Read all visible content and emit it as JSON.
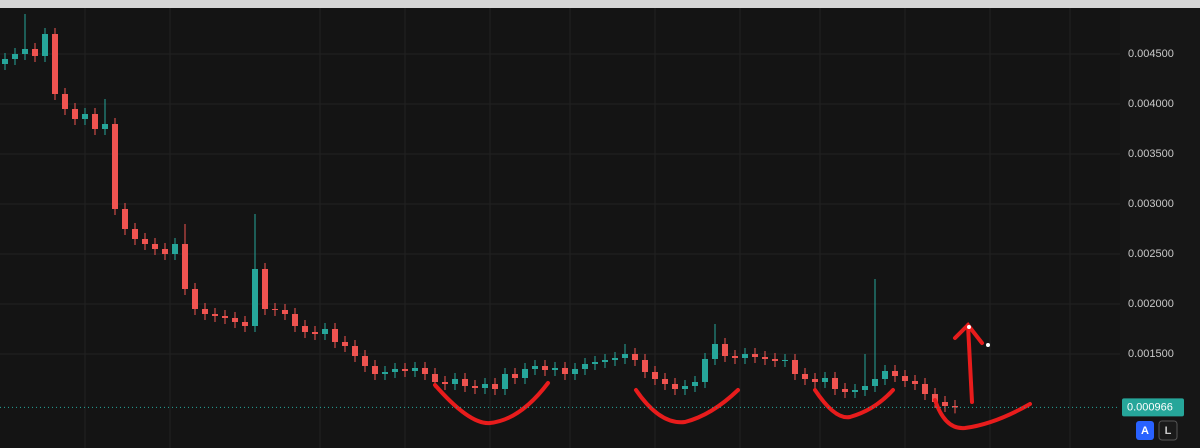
{
  "chart_data": {
    "type": "candlestick",
    "ylim": [
      0.00064,
      0.00496
    ],
    "yticks": [
      {
        "value": 0.0015,
        "label": "0.001500"
      },
      {
        "value": 0.002,
        "label": "0.002000"
      },
      {
        "value": 0.0025,
        "label": "0.002500"
      },
      {
        "value": 0.003,
        "label": "0.003000"
      },
      {
        "value": 0.0035,
        "label": "0.003500"
      },
      {
        "value": 0.004,
        "label": "0.004000"
      },
      {
        "value": 0.0045,
        "label": "0.004500"
      }
    ],
    "grid": true,
    "up_color": "#26a69a",
    "down_color": "#ef5350",
    "open": [
      0.0044,
      0.00445,
      0.0045,
      0.00455,
      0.00448,
      0.0047,
      0.0041,
      0.00395,
      0.00385,
      0.0039,
      0.00375,
      0.0038,
      0.00295,
      0.00275,
      0.00265,
      0.0026,
      0.00255,
      0.0025,
      0.0026,
      0.00215,
      0.00195,
      0.0019,
      0.00188,
      0.00186,
      0.00182,
      0.00178,
      0.00235,
      0.00195,
      0.00194,
      0.0019,
      0.00178,
      0.00172,
      0.0017,
      0.00175,
      0.00162,
      0.00158,
      0.00148,
      0.00138,
      0.0013,
      0.00132,
      0.00135,
      0.00133,
      0.00136,
      0.0013,
      0.00122,
      0.0012,
      0.00125,
      0.00118,
      0.00116,
      0.0012,
      0.00115,
      0.0013,
      0.00126,
      0.00135,
      0.00138,
      0.00134,
      0.00136,
      0.0013,
      0.00135,
      0.0014,
      0.00142,
      0.00144,
      0.00146,
      0.0015,
      0.00144,
      0.00132,
      0.00125,
      0.0012,
      0.00115,
      0.00118,
      0.00122,
      0.00145,
      0.0016,
      0.00148,
      0.00146,
      0.0015,
      0.00147,
      0.00145,
      0.00143,
      0.00144,
      0.0013,
      0.00125,
      0.00122,
      0.00126,
      0.00115,
      0.00112,
      0.00114,
      0.00118,
      0.00125,
      0.00133,
      0.00128,
      0.00123,
      0.0012,
      0.0011,
      0.00102,
      0.00098
    ],
    "high": [
      0.00451,
      0.00456,
      0.0049,
      0.00461,
      0.00476,
      0.00476,
      0.00416,
      0.00401,
      0.00396,
      0.00396,
      0.00405,
      0.00386,
      0.00301,
      0.00281,
      0.00271,
      0.00266,
      0.00261,
      0.00266,
      0.0028,
      0.00221,
      0.00201,
      0.00196,
      0.00194,
      0.00192,
      0.00188,
      0.0029,
      0.00241,
      0.00201,
      0.002,
      0.00196,
      0.00184,
      0.00178,
      0.00181,
      0.00181,
      0.00168,
      0.00164,
      0.00154,
      0.00144,
      0.00138,
      0.00141,
      0.00141,
      0.00142,
      0.00142,
      0.00136,
      0.00128,
      0.00131,
      0.00131,
      0.00124,
      0.00126,
      0.00126,
      0.00136,
      0.00136,
      0.00141,
      0.00144,
      0.00144,
      0.00142,
      0.00142,
      0.00141,
      0.00146,
      0.00148,
      0.0015,
      0.00152,
      0.0016,
      0.00156,
      0.0015,
      0.00138,
      0.00131,
      0.00126,
      0.00124,
      0.00128,
      0.00151,
      0.0018,
      0.00166,
      0.00154,
      0.00156,
      0.00156,
      0.00153,
      0.00151,
      0.0015,
      0.0015,
      0.00136,
      0.00131,
      0.00132,
      0.00132,
      0.00121,
      0.0012,
      0.0015,
      0.00225,
      0.00139,
      0.00139,
      0.00134,
      0.00129,
      0.00126,
      0.00116,
      0.00108,
      0.00104
    ],
    "low": [
      0.00434,
      0.00439,
      0.00444,
      0.00442,
      0.00442,
      0.00404,
      0.00389,
      0.00379,
      0.00379,
      0.00369,
      0.00369,
      0.00289,
      0.00269,
      0.00259,
      0.00254,
      0.00249,
      0.00244,
      0.00244,
      0.00209,
      0.00189,
      0.00184,
      0.00182,
      0.0018,
      0.00176,
      0.00172,
      0.00172,
      0.00189,
      0.00188,
      0.00184,
      0.00172,
      0.00166,
      0.00164,
      0.00164,
      0.00156,
      0.00152,
      0.00142,
      0.00132,
      0.00124,
      0.00124,
      0.00126,
      0.00127,
      0.00127,
      0.00124,
      0.00116,
      0.00114,
      0.00114,
      0.00112,
      0.0011,
      0.0011,
      0.00109,
      0.00109,
      0.0012,
      0.0012,
      0.00129,
      0.00128,
      0.00128,
      0.00124,
      0.00124,
      0.00129,
      0.00134,
      0.00136,
      0.00138,
      0.0014,
      0.00138,
      0.00126,
      0.00119,
      0.00114,
      0.00109,
      0.00109,
      0.00112,
      0.00116,
      0.00139,
      0.00142,
      0.0014,
      0.0014,
      0.00141,
      0.00139,
      0.00137,
      0.00137,
      0.00124,
      0.00119,
      0.00116,
      0.00116,
      0.00109,
      0.00106,
      0.00106,
      0.00108,
      0.00112,
      0.00119,
      0.00122,
      0.00117,
      0.00114,
      0.00104,
      0.00096,
      0.00092,
      0.000906
    ],
    "close": [
      0.00445,
      0.0045,
      0.00455,
      0.00448,
      0.0047,
      0.0041,
      0.00395,
      0.00385,
      0.0039,
      0.00375,
      0.0038,
      0.00295,
      0.00275,
      0.00265,
      0.0026,
      0.00255,
      0.0025,
      0.0026,
      0.00215,
      0.00195,
      0.0019,
      0.00188,
      0.00186,
      0.00182,
      0.00178,
      0.00235,
      0.00195,
      0.00194,
      0.0019,
      0.00178,
      0.00172,
      0.0017,
      0.00175,
      0.00162,
      0.00158,
      0.00148,
      0.00138,
      0.0013,
      0.00132,
      0.00135,
      0.00133,
      0.00136,
      0.0013,
      0.00122,
      0.0012,
      0.00125,
      0.00118,
      0.00116,
      0.0012,
      0.00115,
      0.0013,
      0.00126,
      0.00135,
      0.00138,
      0.00134,
      0.00136,
      0.0013,
      0.00135,
      0.0014,
      0.00142,
      0.00144,
      0.00146,
      0.0015,
      0.00144,
      0.00132,
      0.00125,
      0.0012,
      0.00115,
      0.00118,
      0.00122,
      0.00145,
      0.0016,
      0.00148,
      0.00146,
      0.0015,
      0.00147,
      0.00145,
      0.00143,
      0.00144,
      0.0013,
      0.00125,
      0.00122,
      0.00126,
      0.00115,
      0.00112,
      0.00114,
      0.00118,
      0.00125,
      0.00133,
      0.00128,
      0.00123,
      0.0012,
      0.0011,
      0.00102,
      0.00098,
      0.000966
    ],
    "last_price": 0.000966,
    "controls": {
      "auto": "A",
      "log": "L"
    }
  }
}
